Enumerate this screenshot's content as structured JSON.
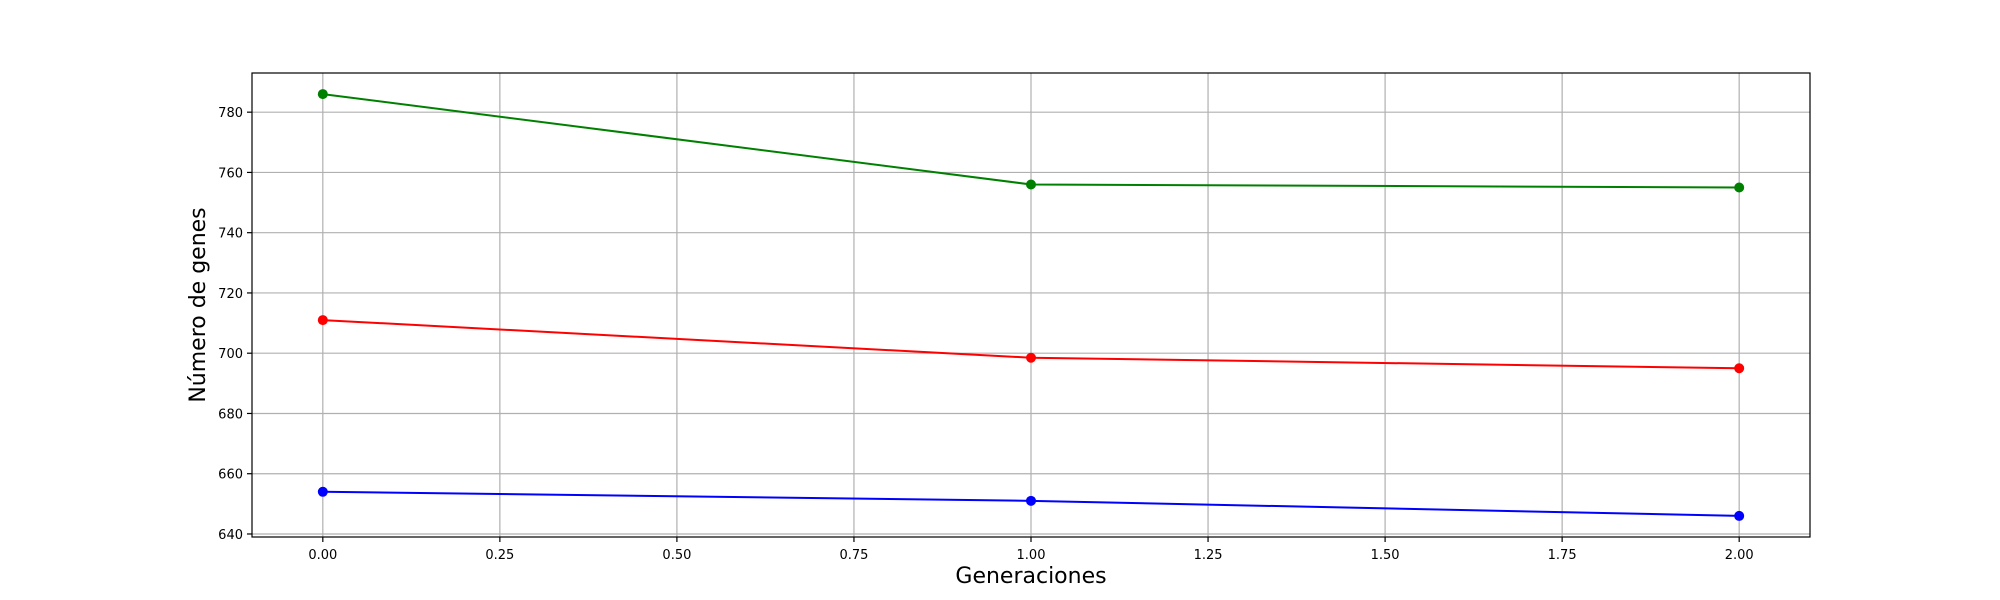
{
  "chart_data": {
    "type": "line",
    "xlabel": "Generaciones",
    "ylabel": "Número de genes",
    "xlim": [
      -0.1,
      2.1
    ],
    "ylim": [
      639,
      793
    ],
    "x_ticks": [
      0.0,
      0.25,
      0.5,
      0.75,
      1.0,
      1.25,
      1.5,
      1.75,
      2.0
    ],
    "x_tick_labels": [
      "0.00",
      "0.25",
      "0.50",
      "0.75",
      "1.00",
      "1.25",
      "1.50",
      "1.75",
      "2.00"
    ],
    "y_ticks": [
      640,
      660,
      680,
      700,
      720,
      740,
      760,
      780
    ],
    "y_tick_labels": [
      "640",
      "660",
      "680",
      "700",
      "720",
      "740",
      "760",
      "780"
    ],
    "grid": true,
    "markers": true,
    "x": [
      0,
      1,
      2
    ],
    "series": [
      {
        "color": "#008000",
        "values": [
          786,
          756,
          755
        ]
      },
      {
        "color": "#ff0000",
        "values": [
          711,
          698.5,
          695
        ]
      },
      {
        "color": "#0000ff",
        "values": [
          654,
          651,
          646
        ]
      }
    ]
  }
}
